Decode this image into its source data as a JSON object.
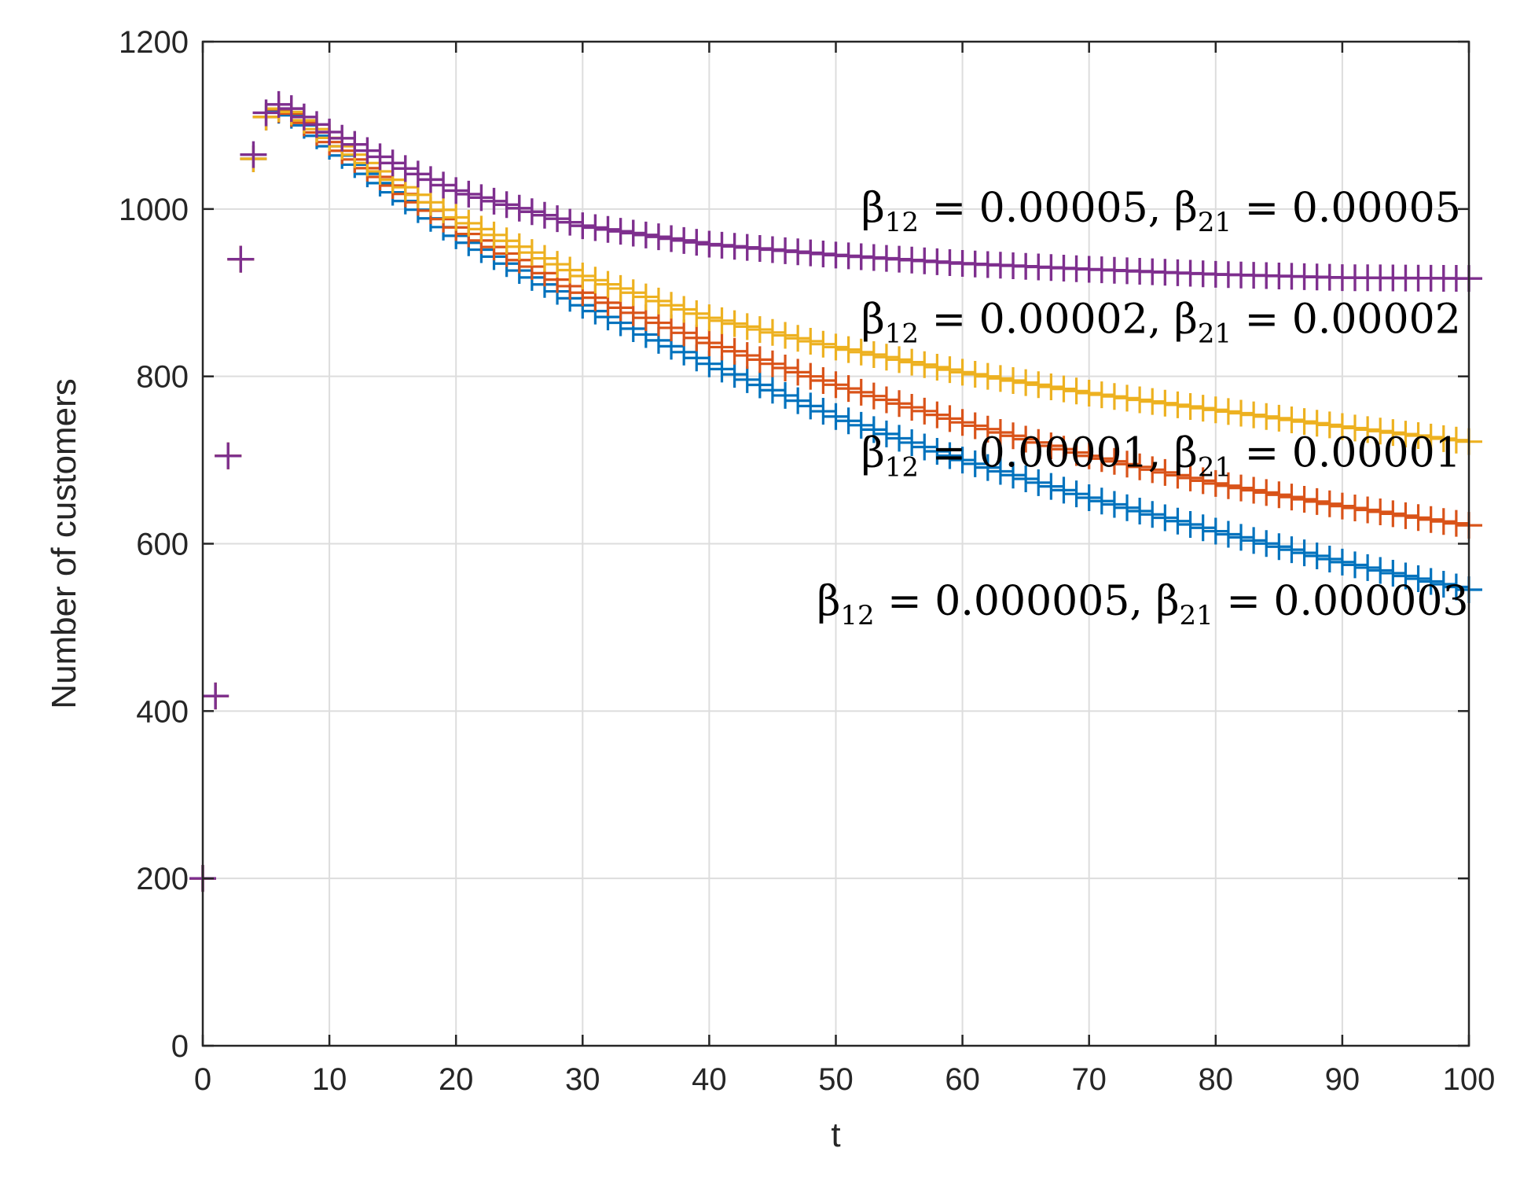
{
  "chart_data": {
    "type": "scatter",
    "title": "",
    "xlabel": "t",
    "ylabel": "Number of customers",
    "xlim": [
      0,
      100
    ],
    "ylim": [
      0,
      1200
    ],
    "xticks": [
      "0",
      "10",
      "20",
      "30",
      "40",
      "50",
      "60",
      "70",
      "80",
      "90",
      "100"
    ],
    "yticks": [
      "0",
      "200",
      "400",
      "600",
      "800",
      "1000",
      "1200"
    ],
    "grid": true,
    "marker": "+",
    "series": [
      {
        "name": "beta12=0.000005, beta21=0.000003",
        "color": "#0072BD",
        "x": [
          0,
          1,
          2,
          3,
          4,
          5,
          6,
          7,
          8,
          10,
          15,
          20,
          30,
          40,
          50,
          60,
          70,
          80,
          90,
          100
        ],
        "y": [
          200,
          418,
          705,
          940,
          1060,
          1110,
          1118,
          1112,
          1100,
          1075,
          1020,
          968,
          885,
          815,
          752,
          700,
          655,
          615,
          578,
          545
        ]
      },
      {
        "name": "beta12=0.00001, beta21=0.00001",
        "color": "#D95319",
        "x": [
          0,
          1,
          2,
          3,
          4,
          5,
          6,
          7,
          8,
          10,
          15,
          20,
          30,
          40,
          50,
          60,
          70,
          80,
          90,
          100
        ],
        "y": [
          200,
          418,
          705,
          940,
          1060,
          1110,
          1119,
          1114,
          1103,
          1080,
          1028,
          978,
          900,
          840,
          790,
          745,
          705,
          672,
          645,
          622
        ]
      },
      {
        "name": "beta12=0.00002, beta21=0.00002",
        "color": "#EDB120",
        "x": [
          0,
          1,
          2,
          3,
          4,
          5,
          6,
          7,
          8,
          10,
          15,
          20,
          30,
          40,
          50,
          60,
          70,
          80,
          90,
          100
        ],
        "y": [
          200,
          418,
          705,
          940,
          1060,
          1110,
          1120,
          1116,
          1106,
          1085,
          1035,
          990,
          920,
          870,
          835,
          805,
          780,
          760,
          740,
          722
        ]
      },
      {
        "name": "beta12=0.00005, beta21=0.00005",
        "color": "#7E2F8E",
        "x": [
          0,
          1,
          2,
          3,
          4,
          5,
          6,
          7,
          8,
          10,
          15,
          20,
          30,
          40,
          50,
          60,
          70,
          80,
          90,
          100
        ],
        "y": [
          200,
          418,
          705,
          940,
          1065,
          1115,
          1125,
          1120,
          1110,
          1092,
          1055,
          1022,
          980,
          958,
          945,
          935,
          928,
          922,
          918,
          917
        ]
      }
    ],
    "annotations": [
      {
        "series": 3,
        "x": 52,
        "y": 985,
        "parts": [
          [
            "β",
            ""
          ],
          [
            "12",
            "sub"
          ],
          [
            " = 0.00005,  β",
            ""
          ],
          [
            "21",
            "sub"
          ],
          [
            " = 0.00005",
            ""
          ]
        ]
      },
      {
        "series": 2,
        "x": 52,
        "y": 852,
        "parts": [
          [
            "β",
            ""
          ],
          [
            "12",
            "sub"
          ],
          [
            " = 0.00002,  β",
            ""
          ],
          [
            "21",
            "sub"
          ],
          [
            " = 0.00002",
            ""
          ]
        ]
      },
      {
        "series": 1,
        "x": 52,
        "y": 692,
        "parts": [
          [
            "β",
            ""
          ],
          [
            "12",
            "sub"
          ],
          [
            " = 0.00001,  β",
            ""
          ],
          [
            "21",
            "sub"
          ],
          [
            " = 0.00001",
            ""
          ]
        ]
      },
      {
        "series": 0,
        "x": 48.5,
        "y": 515,
        "parts": [
          [
            "β",
            ""
          ],
          [
            "12",
            "sub"
          ],
          [
            " = 0.000005,  β",
            ""
          ],
          [
            "21",
            "sub"
          ],
          [
            " = 0.000003",
            ""
          ]
        ]
      }
    ]
  }
}
